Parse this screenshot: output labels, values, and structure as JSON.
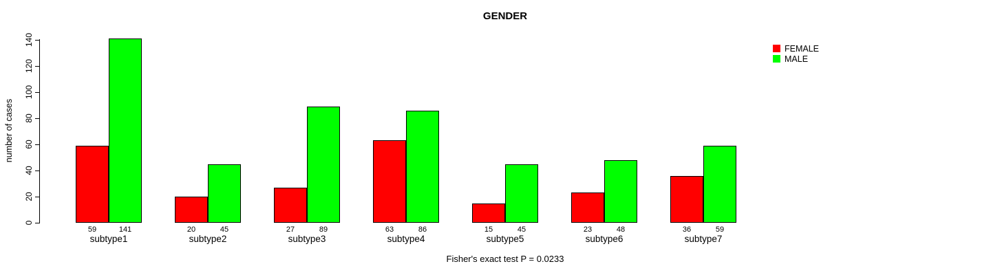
{
  "title": "GENDER",
  "annotation": "Fisher's exact test P = 0.0233",
  "ylabel": "number of cases",
  "colors": {
    "female": "#ff0000",
    "male": "#00ff00",
    "axis": "#000000",
    "background": "#ffffff",
    "text": "#000000"
  },
  "legend": {
    "items": [
      {
        "label": "FEMALE",
        "color": "#ff0000"
      },
      {
        "label": "MALE",
        "color": "#00ff00"
      }
    ]
  },
  "chart_data": {
    "type": "bar",
    "title": "GENDER",
    "xlabel": "",
    "ylabel": "number of cases",
    "categories": [
      "subtype1",
      "subtype2",
      "subtype3",
      "subtype4",
      "subtype5",
      "subtype6",
      "subtype7"
    ],
    "series": [
      {
        "name": "FEMALE",
        "color": "#ff0000",
        "values": [
          59,
          20,
          27,
          63,
          15,
          23,
          36
        ]
      },
      {
        "name": "MALE",
        "color": "#00ff00",
        "values": [
          141,
          45,
          89,
          86,
          45,
          48,
          59
        ]
      }
    ],
    "bar_value_labels": true,
    "ylim": [
      0,
      140
    ],
    "yticks": [
      0,
      20,
      40,
      60,
      80,
      100,
      120,
      140
    ],
    "grid": false,
    "legend_position": "top-right-inside",
    "annotation": "Fisher's exact test P = 0.0233"
  }
}
